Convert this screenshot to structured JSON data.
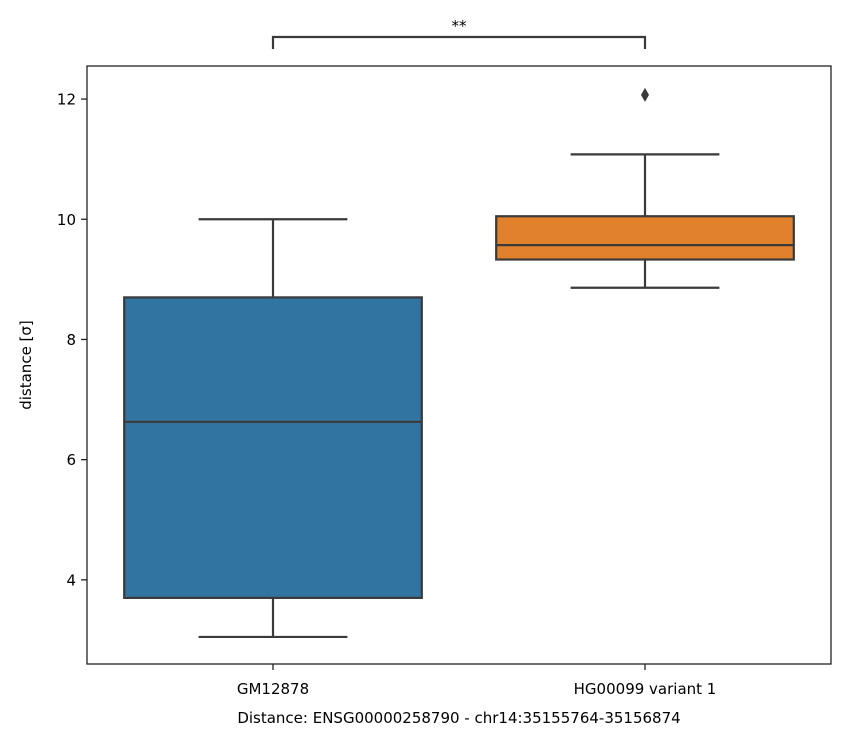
{
  "chart_data": {
    "type": "box",
    "title": "",
    "xlabel": "Distance:  ENSG00000258790 - chr14:35155764-35156874",
    "ylabel": "distance [σ]",
    "ylim": [
      2.6,
      12.55
    ],
    "yticks": [
      4,
      6,
      8,
      10,
      12
    ],
    "grid": false,
    "categories": [
      "GM12878",
      "HG00099 variant 1"
    ],
    "boxes": [
      {
        "category": "GM12878",
        "whisker_low": 3.05,
        "q1": 3.7,
        "median": 6.63,
        "q3": 8.7,
        "whisker_high": 10.0,
        "outliers": [],
        "color": "#3274a1"
      },
      {
        "category": "HG00099 variant 1",
        "whisker_low": 8.86,
        "q1": 9.33,
        "median": 9.57,
        "q3": 10.05,
        "whisker_high": 11.08,
        "outliers": [
          12.07
        ],
        "color": "#e1812c"
      }
    ],
    "annotation": {
      "text": "**",
      "from": "GM12878",
      "to": "HG00099 variant 1"
    }
  }
}
